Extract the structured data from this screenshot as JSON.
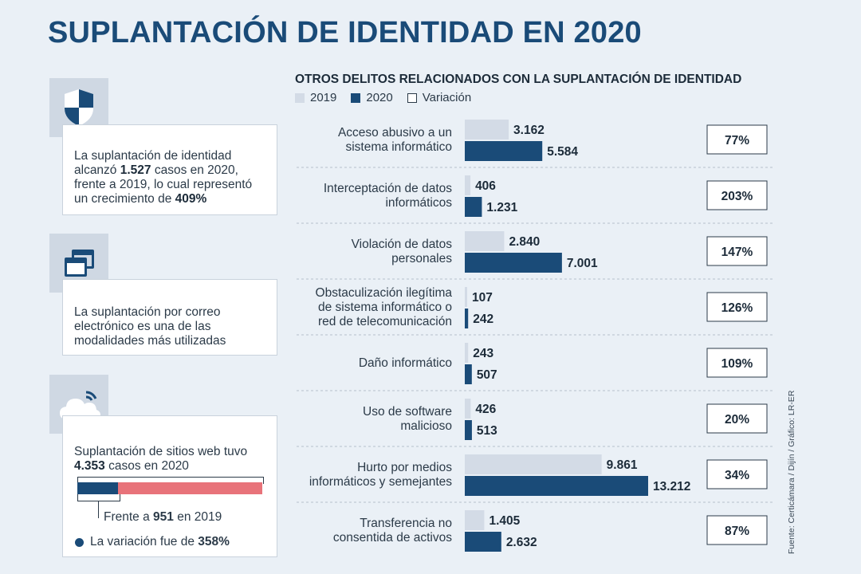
{
  "title": "SUPLANTACIÓN DE IDENTIDAD EN 2020",
  "side_panel": {
    "card1": {
      "icon": "shield-icon",
      "text_before": "La suplantación de identidad alcanzó ",
      "cases_2020": "1.527",
      "text_middle": " casos en 2020, frente a 2019, lo cual representó un crecimiento de ",
      "growth": "409%"
    },
    "card2": {
      "icon": "browser-windows-icon",
      "text": "La suplantación por correo electrónico es una de las modalidades más utilizadas"
    },
    "card3": {
      "icon": "cloud-wifi-icon",
      "line1": "Suplantación de sitios web tuvo",
      "cases_2020": "4.353",
      "line2_rest": " casos en 2020",
      "prior_prefix": "Frente a ",
      "cases_2019": "951",
      "prior_suffix": " en 2019",
      "variation_prefix": "La variación fue de ",
      "variation": "358%",
      "bar_fraction_2019": 0.218
    }
  },
  "chart_data": {
    "type": "bar",
    "orientation": "horizontal",
    "title": "OTROS DELITOS RELACIONADOS CON LA SUPLANTACIÓN DE IDENTIDAD",
    "legend": [
      "2019",
      "2020",
      "Variación"
    ],
    "categories": [
      [
        "Acceso abusivo a un",
        "sistema informático"
      ],
      [
        "Interceptación de datos",
        "informáticos"
      ],
      [
        "Violación de datos",
        "personales"
      ],
      [
        "Obstaculización ilegítima",
        "de sistema informático o",
        "red de telecomunicación"
      ],
      [
        "Daño informático"
      ],
      [
        "Uso de software",
        "malicioso"
      ],
      [
        "Hurto por medios",
        "informáticos y semejantes"
      ],
      [
        "Transferencia no",
        "consentida de activos"
      ]
    ],
    "series": [
      {
        "name": "2019",
        "values": [
          3162,
          406,
          2840,
          107,
          243,
          426,
          9861,
          1405
        ],
        "labels": [
          "3.162",
          "406",
          "2.840",
          "107",
          "243",
          "426",
          "9.861",
          "1.405"
        ]
      },
      {
        "name": "2020",
        "values": [
          5584,
          1231,
          7001,
          242,
          507,
          513,
          13212,
          2632
        ],
        "labels": [
          "5.584",
          "1.231",
          "7.001",
          "242",
          "507",
          "513",
          "13.212",
          "2.632"
        ]
      }
    ],
    "variation": [
      "77%",
      "203%",
      "147%",
      "126%",
      "109%",
      "20%",
      "34%",
      "87%"
    ],
    "xmax": 14000
  },
  "source": "Fuente: Certicámara / Dijín / Gráfico: LR-ER",
  "colors": {
    "series_2019": "#d3dbe6",
    "series_2020": "#1a4b78",
    "accent_red": "#e8737a",
    "title": "#1a4b78"
  }
}
